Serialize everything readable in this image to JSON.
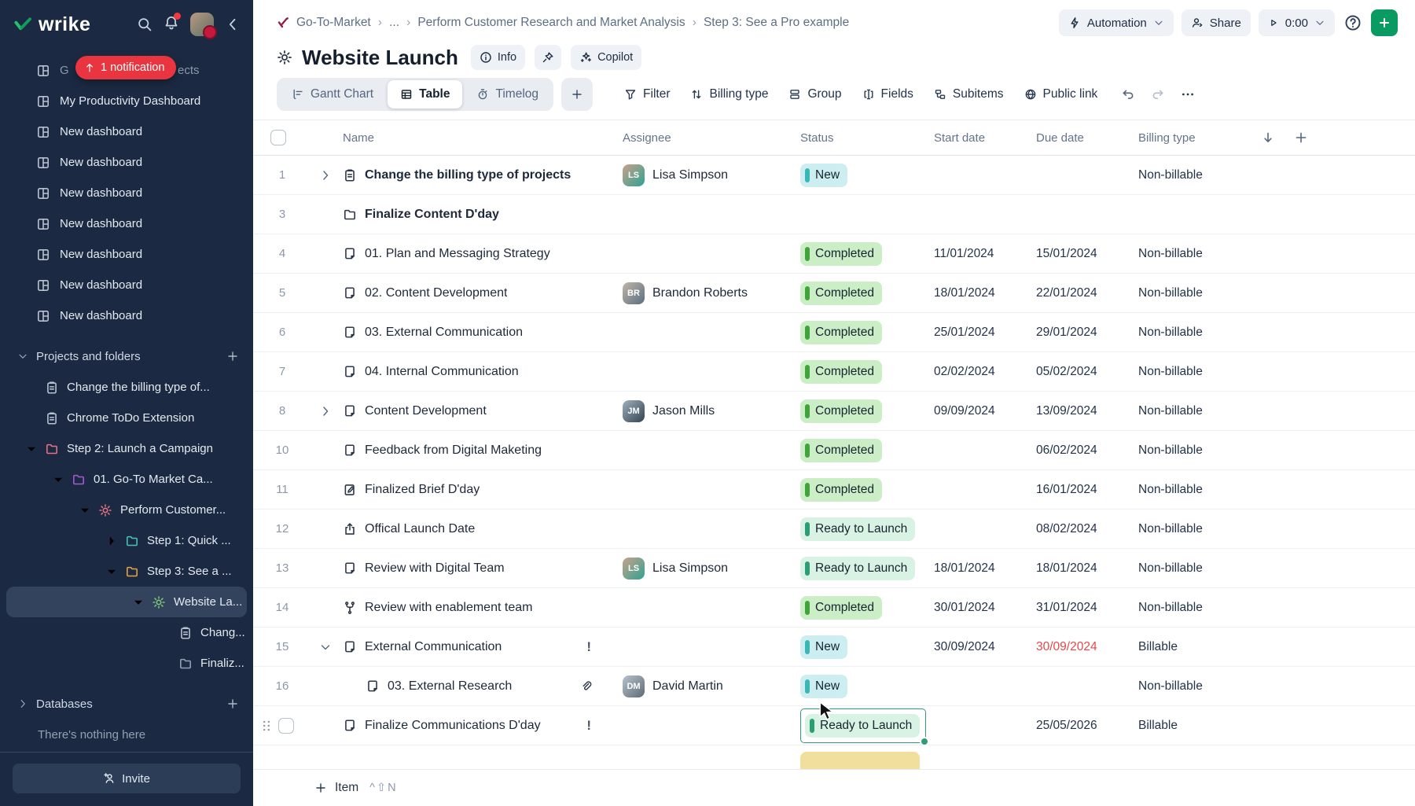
{
  "sidebar": {
    "logo_text": "wrike",
    "notification_pill": "1 notification",
    "covered_item": {
      "prefix": "G",
      "suffix": "ects"
    },
    "dashboards": [
      {
        "label": "My Productivity Dashboard"
      },
      {
        "label": "New dashboard"
      },
      {
        "label": "New dashboard"
      },
      {
        "label": "New dashboard"
      },
      {
        "label": "New dashboard"
      },
      {
        "label": "New dashboard"
      },
      {
        "label": "New dashboard"
      },
      {
        "label": "New dashboard"
      }
    ],
    "sections": {
      "projects": "Projects and folders",
      "databases": "Databases",
      "databases_empty": "There's nothing here"
    },
    "tree": [
      {
        "label": "Change the billing type of...",
        "icon": "clipboard",
        "color": "#b9c3d0",
        "level": 1,
        "chevron": ""
      },
      {
        "label": "Chrome ToDo Extension",
        "icon": "clipboard",
        "color": "#b9c3d0",
        "level": 1,
        "chevron": ""
      },
      {
        "label": "Step 2: Launch a Campaign",
        "icon": "folder",
        "color": "#e4737e",
        "level": 1,
        "chevron": "down"
      },
      {
        "label": "01. Go-To Market Ca...",
        "icon": "folder",
        "color": "#a55ad0",
        "level": 2,
        "chevron": "down"
      },
      {
        "label": "Perform Customer...",
        "icon": "sun",
        "color": "#e4737e",
        "level": 3,
        "chevron": "down"
      },
      {
        "label": "Step 1: Quick ...",
        "icon": "folder",
        "color": "#3ec6b6",
        "level": 4,
        "chevron": "right"
      },
      {
        "label": "Step 3: See a ...",
        "icon": "folder",
        "color": "#e8a33d",
        "level": 4,
        "chevron": "down"
      },
      {
        "label": "Website La...",
        "icon": "sun",
        "color": "#7cc576",
        "level": 5,
        "chevron": "down",
        "selected": true
      },
      {
        "label": "Chang...",
        "icon": "clipboard",
        "color": "#b9c3d0",
        "level": 6,
        "chevron": ""
      },
      {
        "label": "Finaliz...",
        "icon": "folder",
        "color": "#93a1b3",
        "level": 6,
        "chevron": ""
      }
    ],
    "invite_label": "Invite"
  },
  "topbar": {
    "breadcrumbs": [
      "Go-To-Market",
      "...",
      "Perform Customer Research and Market Analysis",
      "Step 3: See a Pro example"
    ],
    "automation_label": "Automation",
    "share_label": "Share",
    "timer_value": "0:00"
  },
  "header": {
    "title": "Website Launch",
    "info_label": "Info",
    "copilot_label": "Copilot"
  },
  "tabs": [
    {
      "label": "Gantt Chart",
      "icon": "gantt",
      "active": false
    },
    {
      "label": "Table",
      "icon": "tablegrid",
      "active": true
    },
    {
      "label": "Timelog",
      "icon": "stopwatch",
      "active": false
    }
  ],
  "toolbar": [
    {
      "label": "Filter",
      "icon": "filter"
    },
    {
      "label": "Billing type",
      "icon": "sortarrows"
    },
    {
      "label": "Group",
      "icon": "group"
    },
    {
      "label": "Fields",
      "icon": "fields"
    },
    {
      "label": "Subitems",
      "icon": "subitems"
    },
    {
      "label": "Public link",
      "icon": "globe"
    }
  ],
  "assignees": {
    "Lisa Simpson": {
      "initials": "LS",
      "grad": [
        "#caa08a",
        "#2ea392"
      ]
    },
    "Brandon Roberts": {
      "initials": "BR",
      "grad": [
        "#c2b6a6",
        "#5a6e82"
      ]
    },
    "Jason Mills": {
      "initials": "JM",
      "grad": [
        "#9fb0bd",
        "#33424f"
      ]
    },
    "David Martin": {
      "initials": "DM",
      "grad": [
        "#b9c2cb",
        "#5d6a76"
      ]
    }
  },
  "status_styles": {
    "New": {
      "bg": "#cceef1",
      "bar": "#3ab7b4"
    },
    "Completed": {
      "bg": "#cbeec6",
      "bar": "#41a33b"
    },
    "Ready to Launch": {
      "bg": "#d8f3e4",
      "bar": "#2f9d74"
    }
  },
  "table": {
    "columns": [
      "Name",
      "Assignee",
      "Status",
      "Start date",
      "Due date",
      "Billing type"
    ],
    "rows": [
      {
        "num": "1",
        "expand": "right",
        "icon": "clipboard",
        "name": "Change the billing type of projects",
        "bold": true,
        "trailing": "",
        "assignee": "Lisa Simpson",
        "status": "New",
        "start": "",
        "due": "",
        "due_red": false,
        "billing": "Non-billable",
        "indent": 0
      },
      {
        "num": "3",
        "expand": "",
        "icon": "folder",
        "name": "Finalize Content D'day",
        "bold": true,
        "trailing": "",
        "assignee": "",
        "status": "",
        "start": "",
        "due": "",
        "due_red": false,
        "billing": "",
        "indent": 0
      },
      {
        "num": "4",
        "expand": "",
        "icon": "task",
        "name": "01. Plan and Messaging Strategy",
        "bold": false,
        "trailing": "",
        "assignee": "",
        "status": "Completed",
        "start": "11/01/2024",
        "due": "15/01/2024",
        "due_red": false,
        "billing": "Non-billable",
        "indent": 0
      },
      {
        "num": "5",
        "expand": "",
        "icon": "task",
        "name": "02. Content Development",
        "bold": false,
        "trailing": "",
        "assignee": "Brandon Roberts",
        "status": "Completed",
        "start": "18/01/2024",
        "due": "22/01/2024",
        "due_red": false,
        "billing": "Non-billable",
        "indent": 0
      },
      {
        "num": "6",
        "expand": "",
        "icon": "task",
        "name": "03. External Communication",
        "bold": false,
        "trailing": "",
        "assignee": "",
        "status": "Completed",
        "start": "25/01/2024",
        "due": "29/01/2024",
        "due_red": false,
        "billing": "Non-billable",
        "indent": 0
      },
      {
        "num": "7",
        "expand": "",
        "icon": "task",
        "name": "04. Internal Communication",
        "bold": false,
        "trailing": "",
        "assignee": "",
        "status": "Completed",
        "start": "02/02/2024",
        "due": "05/02/2024",
        "due_red": false,
        "billing": "Non-billable",
        "indent": 0
      },
      {
        "num": "8",
        "expand": "right",
        "icon": "task",
        "name": "Content Development",
        "bold": false,
        "trailing": "",
        "assignee": "Jason Mills",
        "status": "Completed",
        "start": "09/09/2024",
        "due": "13/09/2024",
        "due_red": false,
        "billing": "Non-billable",
        "indent": 0
      },
      {
        "num": "10",
        "expand": "",
        "icon": "task",
        "name": "Feedback from Digital Maketing",
        "bold": false,
        "trailing": "",
        "assignee": "",
        "status": "Completed",
        "start": "",
        "due": "06/02/2024",
        "due_red": false,
        "billing": "Non-billable",
        "indent": 0
      },
      {
        "num": "11",
        "expand": "",
        "icon": "taskedit",
        "name": "Finalized Brief D'day",
        "bold": false,
        "trailing": "",
        "assignee": "",
        "status": "Completed",
        "start": "",
        "due": "16/01/2024",
        "due_red": false,
        "billing": "Non-billable",
        "indent": 0
      },
      {
        "num": "12",
        "expand": "",
        "icon": "launch",
        "name": "Offical Launch Date",
        "bold": false,
        "trailing": "",
        "assignee": "",
        "status": "Ready to Launch",
        "start": "",
        "due": "08/02/2024",
        "due_red": false,
        "billing": "Non-billable",
        "indent": 0
      },
      {
        "num": "13",
        "expand": "",
        "icon": "task",
        "name": "Review with Digital Team",
        "bold": false,
        "trailing": "",
        "assignee": "Lisa Simpson",
        "status": "Ready to Launch",
        "start": "18/01/2024",
        "due": "18/01/2024",
        "due_red": false,
        "billing": "Non-billable",
        "indent": 0
      },
      {
        "num": "14",
        "expand": "",
        "icon": "workflow",
        "name": "Review with enablement team",
        "bold": false,
        "trailing": "",
        "assignee": "",
        "status": "Completed",
        "start": "30/01/2024",
        "due": "31/01/2024",
        "due_red": false,
        "billing": "Non-billable",
        "indent": 0
      },
      {
        "num": "15",
        "expand": "down",
        "icon": "task",
        "name": "External Communication",
        "bold": false,
        "trailing": "exclamation",
        "assignee": "",
        "status": "New",
        "start": "30/09/2024",
        "due": "30/09/2024",
        "due_red": true,
        "billing": "Billable",
        "indent": 0
      },
      {
        "num": "16",
        "expand": "",
        "icon": "task",
        "name": "03. External Research",
        "bold": false,
        "trailing": "paperclip",
        "assignee": "David Martin",
        "status": "New",
        "start": "",
        "due": "",
        "due_red": false,
        "billing": "Non-billable",
        "indent": 1
      },
      {
        "num": "",
        "expand": "",
        "icon": "task",
        "name": "Finalize Communications D'day",
        "bold": false,
        "trailing": "exclamation",
        "assignee": "",
        "status": "Ready to Launch",
        "start": "",
        "due": "25/05/2026",
        "due_red": false,
        "billing": "Billable",
        "indent": 0,
        "drag": true,
        "checkbox": true,
        "status_selected": true
      }
    ],
    "add_item_label": "Item",
    "add_item_shortcut": "^⇧N"
  }
}
